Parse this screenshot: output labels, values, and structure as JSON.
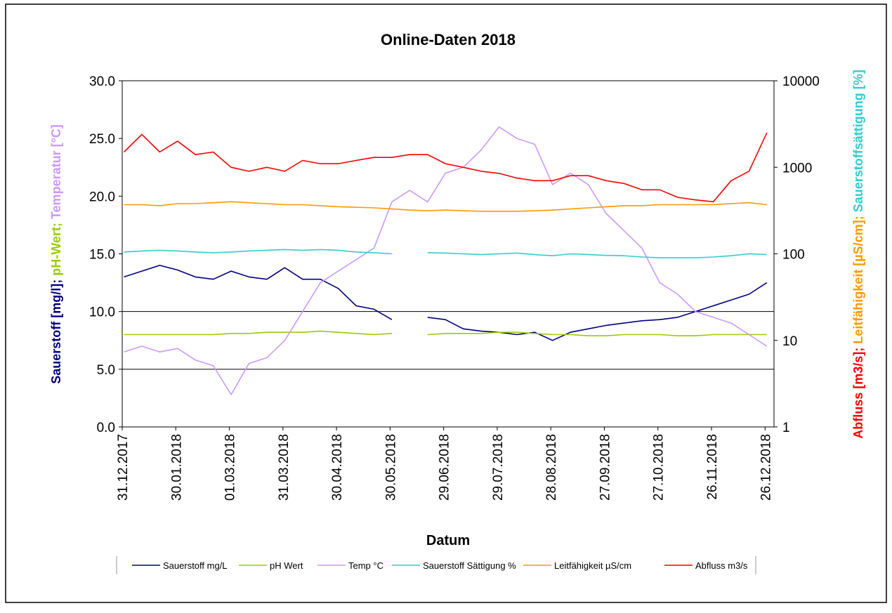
{
  "chart_data": {
    "type": "line",
    "title": "Online-Daten 2018",
    "x_label": "Datum",
    "y_label_parts": [
      {
        "text": "Sauerstoff [mg/l]; ",
        "color": "#000080"
      },
      {
        "text": "pH-Wert; ",
        "color": "#99cc00"
      },
      {
        "text": "Temperatur [°C]",
        "color": "#cc99ff"
      }
    ],
    "y2_label_parts": [
      {
        "text": "Abfluss [m3/s]; ",
        "color": "#ff0000"
      },
      {
        "text": "Leitfähigkeit [µS/cm]; ",
        "color": "#ff9900"
      },
      {
        "text": "Sauerstoffsättigung [%]",
        "color": "#33cccc"
      }
    ],
    "x": [
      "2018-01-01",
      "2018-01-11",
      "2018-01-21",
      "2018-01-31",
      "2018-02-10",
      "2018-02-20",
      "2018-03-02",
      "2018-03-12",
      "2018-03-22",
      "2018-04-01",
      "2018-04-11",
      "2018-04-21",
      "2018-05-01",
      "2018-05-11",
      "2018-05-21",
      "2018-05-31",
      "2018-06-10",
      "2018-06-20",
      "2018-06-30",
      "2018-07-10",
      "2018-07-20",
      "2018-07-30",
      "2018-08-09",
      "2018-08-19",
      "2018-08-29",
      "2018-09-08",
      "2018-09-18",
      "2018-09-28",
      "2018-10-08",
      "2018-10-18",
      "2018-10-28",
      "2018-11-07",
      "2018-11-17",
      "2018-11-27",
      "2018-12-07",
      "2018-12-17",
      "2018-12-27"
    ],
    "xlim": [
      "2017-12-31",
      "2018-12-31"
    ],
    "xticks": [
      {
        "value": "2017-12-31",
        "label": "31.12.2017"
      },
      {
        "value": "2018-01-30",
        "label": "30.01.2018"
      },
      {
        "value": "2018-03-01",
        "label": "01.03.2018"
      },
      {
        "value": "2018-03-31",
        "label": "31.03.2018"
      },
      {
        "value": "2018-04-30",
        "label": "30.04.2018"
      },
      {
        "value": "2018-05-30",
        "label": "30.05.2018"
      },
      {
        "value": "2018-06-29",
        "label": "29.06.2018"
      },
      {
        "value": "2018-07-29",
        "label": "29.07.2018"
      },
      {
        "value": "2018-08-28",
        "label": "28.08.2018"
      },
      {
        "value": "2018-09-27",
        "label": "27.09.2018"
      },
      {
        "value": "2018-10-27",
        "label": "27.10.2018"
      },
      {
        "value": "2018-11-26",
        "label": "26.11.2018"
      },
      {
        "value": "2018-12-26",
        "label": "26.12.2018"
      }
    ],
    "ylim": [
      0,
      30
    ],
    "yticks": [
      {
        "value": 0,
        "label": "0.0"
      },
      {
        "value": 5,
        "label": "5.0"
      },
      {
        "value": 10,
        "label": "10.0"
      },
      {
        "value": 15,
        "label": "15.0"
      },
      {
        "value": 20,
        "label": "20.0"
      },
      {
        "value": 25,
        "label": "25.0"
      },
      {
        "value": 30,
        "label": "30.0"
      }
    ],
    "y2lim": [
      1,
      10000
    ],
    "y2_log": true,
    "y2ticks": [
      1,
      10,
      100,
      1000,
      10000
    ],
    "reference_lines": [
      5,
      10
    ],
    "series": [
      {
        "name": "Sauerstoff mg/L",
        "color": "#000080",
        "values": [
          13.0,
          13.5,
          14.0,
          13.6,
          13.0,
          12.8,
          13.5,
          13.0,
          12.8,
          13.8,
          12.8,
          12.8,
          12.0,
          10.5,
          10.2,
          9.3,
          null,
          9.5,
          9.3,
          8.5,
          8.3,
          8.2,
          8.0,
          8.2,
          7.5,
          8.2,
          8.5,
          8.8,
          9.0,
          9.2,
          9.3,
          9.5,
          10.0,
          10.5,
          11.0,
          11.5,
          12.5
        ]
      },
      {
        "name": "pH Wert",
        "color": "#99cc00",
        "values": [
          8.0,
          8.0,
          8.0,
          8.0,
          8.0,
          8.0,
          8.1,
          8.1,
          8.2,
          8.2,
          8.2,
          8.3,
          8.2,
          8.1,
          8.0,
          8.1,
          null,
          8.0,
          8.1,
          8.1,
          8.1,
          8.2,
          8.2,
          8.1,
          8.0,
          8.0,
          7.9,
          7.9,
          8.0,
          8.0,
          8.0,
          7.9,
          7.9,
          8.0,
          8.0,
          8.0,
          8.0
        ]
      },
      {
        "name": "Temp °C",
        "color": "#cc99ff",
        "values": [
          6.5,
          7.0,
          6.5,
          6.8,
          5.8,
          5.3,
          2.8,
          5.5,
          6.0,
          7.5,
          10.0,
          12.5,
          13.5,
          14.5,
          15.5,
          19.5,
          20.5,
          19.5,
          22.0,
          22.5,
          24.0,
          26.0,
          25.0,
          24.5,
          21.0,
          22.0,
          21.0,
          18.5,
          17.0,
          15.5,
          12.5,
          11.5,
          10.0,
          9.5,
          9.0,
          8.0,
          7.0
        ]
      },
      {
        "name": "Sauerstoff Sättigung %",
        "color": "#33cccc",
        "axis": "y2",
        "values": [
          105,
          108,
          110,
          108,
          105,
          103,
          105,
          108,
          110,
          112,
          110,
          112,
          110,
          105,
          103,
          100,
          null,
          103,
          102,
          100,
          98,
          100,
          102,
          98,
          95,
          100,
          98,
          96,
          95,
          92,
          90,
          90,
          90,
          92,
          95,
          100,
          98
        ]
      },
      {
        "name": "Leitfähigkeit µS/cm",
        "color": "#ff9900",
        "axis": "y2",
        "values": [
          370,
          370,
          360,
          380,
          380,
          390,
          400,
          390,
          380,
          370,
          370,
          360,
          350,
          345,
          340,
          330,
          320,
          315,
          320,
          315,
          310,
          310,
          310,
          315,
          320,
          330,
          340,
          350,
          360,
          360,
          370,
          370,
          370,
          370,
          380,
          390,
          370
        ]
      },
      {
        "name": "Abfluss m3/s",
        "color": "#ff0000",
        "axis": "y2",
        "values": [
          1500,
          2400,
          1500,
          2000,
          1400,
          1500,
          1000,
          900,
          1000,
          900,
          1200,
          1100,
          1100,
          1200,
          1300,
          1300,
          1400,
          1400,
          1100,
          1000,
          900,
          850,
          750,
          700,
          700,
          800,
          800,
          700,
          650,
          550,
          550,
          450,
          420,
          400,
          700,
          900,
          2500
        ]
      }
    ]
  }
}
